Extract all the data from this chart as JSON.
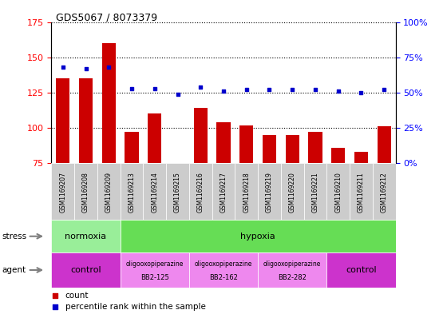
{
  "title": "GDS5067 / 8073379",
  "samples": [
    "GSM1169207",
    "GSM1169208",
    "GSM1169209",
    "GSM1169213",
    "GSM1169214",
    "GSM1169215",
    "GSM1169216",
    "GSM1169217",
    "GSM1169218",
    "GSM1169219",
    "GSM1169220",
    "GSM1169221",
    "GSM1169210",
    "GSM1169211",
    "GSM1169212"
  ],
  "counts": [
    135,
    135,
    160,
    97,
    110,
    75,
    114,
    104,
    102,
    95,
    95,
    97,
    86,
    83,
    101
  ],
  "percentile_ranks": [
    68,
    67,
    68,
    53,
    53,
    49,
    54,
    51,
    52,
    52,
    52,
    52,
    51,
    50,
    52
  ],
  "ylim_left": [
    75,
    175
  ],
  "ylim_right": [
    0,
    100
  ],
  "yticks_left": [
    75,
    100,
    125,
    150,
    175
  ],
  "yticks_right": [
    0,
    25,
    50,
    75,
    100
  ],
  "bar_color": "#cc0000",
  "dot_color": "#0000cc",
  "bar_bottom": 75,
  "stress_groups": [
    {
      "label": "normoxia",
      "start": 0,
      "end": 3,
      "color": "#99ee99"
    },
    {
      "label": "hypoxia",
      "start": 3,
      "end": 15,
      "color": "#66dd55"
    }
  ],
  "agent_groups": [
    {
      "label": "control",
      "start": 0,
      "end": 3,
      "color": "#cc33cc"
    },
    {
      "label": "oligooxopiperazine\nBB2-125",
      "start": 3,
      "end": 6,
      "color": "#ee88ee"
    },
    {
      "label": "oligooxopiperazine\nBB2-162",
      "start": 6,
      "end": 9,
      "color": "#ee88ee"
    },
    {
      "label": "oligooxopiperazine\nBB2-282",
      "start": 9,
      "end": 12,
      "color": "#ee88ee"
    },
    {
      "label": "control",
      "start": 12,
      "end": 15,
      "color": "#cc33cc"
    }
  ],
  "legend_count_color": "#cc0000",
  "legend_dot_color": "#0000cc"
}
